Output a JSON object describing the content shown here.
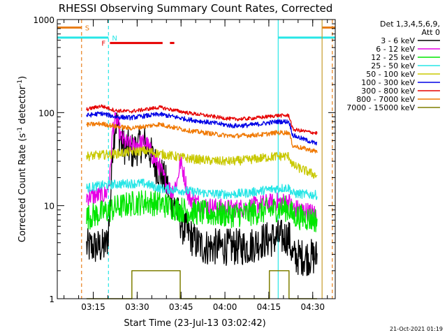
{
  "chart_data": {
    "type": "line",
    "title": "RHESSI Observing Summary Count Rates, Corrected",
    "xlabel": "Start Time (23-Jul-13 03:02:42)",
    "ylabel": "Corrected Count Rate (s",
    "ylabel_sup1": "-1",
    "ylabel_mid": " detector",
    "ylabel_sup2": "-1",
    "ylabel_end": ")",
    "yscale": "log",
    "ylim": [
      1,
      1000
    ],
    "xlim_minutes": [
      0,
      95
    ],
    "yticks": [
      {
        "v": 1,
        "label": "1"
      },
      {
        "v": 10,
        "label": "10"
      },
      {
        "v": 100,
        "label": "100"
      },
      {
        "v": 1000,
        "label": "1000"
      }
    ],
    "xticks": [
      {
        "t": 12.3,
        "label": "03:15"
      },
      {
        "t": 27.3,
        "label": "03:30"
      },
      {
        "t": 42.3,
        "label": "03:45"
      },
      {
        "t": 57.3,
        "label": "04:00"
      },
      {
        "t": 72.3,
        "label": "04:15"
      },
      {
        "t": 87.3,
        "label": "04:30"
      }
    ],
    "legend": {
      "placement": "right",
      "header1": "Det 1,3,4,5,6,9,",
      "header2": "Att 0"
    },
    "flags": {
      "S": {
        "label": "S",
        "color": "#e87f1a",
        "segments": [
          [
            0,
            8.3
          ],
          [
            90.5,
            95
          ]
        ],
        "value": 820
      },
      "N": {
        "label": "N",
        "color": "#27e6e6",
        "segments": [
          [
            0,
            17.5
          ],
          [
            75.5,
            95
          ]
        ],
        "value": 640
      },
      "F": {
        "label": "F",
        "color": "#e60000",
        "segments": [
          [
            18.0,
            36.0
          ],
          [
            38.5,
            40.0
          ]
        ],
        "value": 560
      }
    },
    "vlines": [
      {
        "t": 8.3,
        "color": "#e87f1a",
        "dash": true
      },
      {
        "t": 17.5,
        "color": "#27e6e6",
        "dash": true
      },
      {
        "t": 75.5,
        "color": "#27e6e6",
        "dash": false
      },
      {
        "t": 90.5,
        "color": "#c79b2b",
        "dash": false
      },
      {
        "t": 94.0,
        "color": "#e87f1a",
        "dash": true
      }
    ],
    "data_window": [
      10.0,
      88.8
    ],
    "series": [
      {
        "name": "3 - 6 keV",
        "color": "#000000",
        "noise": 0.2,
        "points": [
          [
            10,
            3.6
          ],
          [
            16,
            3.6
          ],
          [
            17,
            4.0
          ],
          [
            18,
            8
          ],
          [
            19,
            50
          ],
          [
            20,
            80
          ],
          [
            21,
            65
          ],
          [
            22,
            45
          ],
          [
            24,
            42
          ],
          [
            26,
            38
          ],
          [
            28,
            45
          ],
          [
            30,
            46
          ],
          [
            31,
            42
          ],
          [
            33,
            30
          ],
          [
            35,
            23
          ],
          [
            37,
            18
          ],
          [
            39,
            12
          ],
          [
            41,
            8.5
          ],
          [
            43,
            5.8
          ],
          [
            45,
            5.0
          ],
          [
            47,
            4.1
          ],
          [
            50,
            3.6
          ],
          [
            55,
            3.6
          ],
          [
            60,
            3.6
          ],
          [
            65,
            3.6
          ],
          [
            70,
            4.2
          ],
          [
            75,
            4.5
          ],
          [
            78,
            4.6
          ],
          [
            79.2,
            4.6
          ],
          [
            80.5,
            2.8
          ],
          [
            88.8,
            2.8
          ]
        ]
      },
      {
        "name": "6 - 12 keV",
        "color": "#e600e6",
        "noise": 0.1,
        "points": [
          [
            10,
            12.5
          ],
          [
            16,
            13
          ],
          [
            17,
            14
          ],
          [
            18,
            20
          ],
          [
            19,
            70
          ],
          [
            20,
            85
          ],
          [
            21,
            70
          ],
          [
            22,
            52
          ],
          [
            24,
            46
          ],
          [
            26,
            44
          ],
          [
            28,
            47
          ],
          [
            30,
            47
          ],
          [
            31,
            44
          ],
          [
            33,
            32
          ],
          [
            35,
            26
          ],
          [
            37,
            18
          ],
          [
            39,
            14
          ],
          [
            41,
            18
          ],
          [
            42,
            30
          ],
          [
            43,
            24
          ],
          [
            45,
            12
          ],
          [
            50,
            10
          ],
          [
            55,
            9.5
          ],
          [
            60,
            9.3
          ],
          [
            65,
            9.6
          ],
          [
            70,
            10.5
          ],
          [
            75,
            11
          ],
          [
            78,
            11
          ],
          [
            79.2,
            11
          ],
          [
            80.5,
            9.5
          ],
          [
            88.8,
            8.2
          ]
        ]
      },
      {
        "name": "12 - 25 keV",
        "color": "#00e600",
        "noise": 0.14,
        "points": [
          [
            10,
            7.5
          ],
          [
            16,
            8.5
          ],
          [
            20,
            9.5
          ],
          [
            25,
            10.5
          ],
          [
            30,
            11
          ],
          [
            35,
            10.5
          ],
          [
            40,
            9.5
          ],
          [
            45,
            8.7
          ],
          [
            50,
            8.3
          ],
          [
            55,
            8.0
          ],
          [
            60,
            8.0
          ],
          [
            65,
            8.2
          ],
          [
            70,
            8.7
          ],
          [
            75,
            9.2
          ],
          [
            78,
            9.3
          ],
          [
            79.2,
            9.2
          ],
          [
            80.5,
            7.8
          ],
          [
            88.8,
            7.0
          ]
        ]
      },
      {
        "name": "25 - 50 keV",
        "color": "#27e6e6",
        "noise": 0.05,
        "points": [
          [
            10,
            15.5
          ],
          [
            15,
            16.5
          ],
          [
            20,
            17
          ],
          [
            25,
            17.3
          ],
          [
            30,
            17.3
          ],
          [
            35,
            15.3
          ],
          [
            40,
            14.8
          ],
          [
            45,
            14.3
          ],
          [
            50,
            13.7
          ],
          [
            55,
            13.3
          ],
          [
            60,
            13.3
          ],
          [
            65,
            13.7
          ],
          [
            70,
            14.5
          ],
          [
            75,
            15.3
          ],
          [
            78,
            15.5
          ],
          [
            79.2,
            15.5
          ],
          [
            80.5,
            13.5
          ],
          [
            88.8,
            13.0
          ]
        ]
      },
      {
        "name": "50 - 100 keV",
        "color": "#c8c800",
        "noise": 0.05,
        "points": [
          [
            10,
            34
          ],
          [
            15,
            35
          ],
          [
            20,
            36
          ],
          [
            25,
            38
          ],
          [
            30,
            39
          ],
          [
            35,
            36
          ],
          [
            40,
            34
          ],
          [
            45,
            32
          ],
          [
            50,
            31
          ],
          [
            55,
            30
          ],
          [
            60,
            30
          ],
          [
            65,
            31
          ],
          [
            70,
            32.5
          ],
          [
            75,
            34
          ],
          [
            78,
            34
          ],
          [
            79.2,
            34
          ],
          [
            80.5,
            27
          ],
          [
            88.8,
            21
          ]
        ]
      },
      {
        "name": "100 - 300 keV",
        "color": "#0000e6",
        "noise": 0.025,
        "points": [
          [
            10,
            93
          ],
          [
            15,
            98
          ],
          [
            20,
            90
          ],
          [
            25,
            88
          ],
          [
            30,
            92
          ],
          [
            35,
            96
          ],
          [
            40,
            90
          ],
          [
            45,
            84
          ],
          [
            50,
            80
          ],
          [
            55,
            76
          ],
          [
            60,
            72
          ],
          [
            65,
            73
          ],
          [
            70,
            76
          ],
          [
            75,
            80
          ],
          [
            78,
            80
          ],
          [
            79.2,
            80
          ],
          [
            80.5,
            57
          ],
          [
            88.8,
            46
          ]
        ]
      },
      {
        "name": "300 - 800 keV",
        "color": "#e60000",
        "noise": 0.02,
        "points": [
          [
            10,
            108
          ],
          [
            15,
            118
          ],
          [
            20,
            105
          ],
          [
            25,
            103
          ],
          [
            30,
            108
          ],
          [
            35,
            114
          ],
          [
            40,
            106
          ],
          [
            45,
            99
          ],
          [
            50,
            94
          ],
          [
            55,
            89
          ],
          [
            60,
            85
          ],
          [
            65,
            86
          ],
          [
            70,
            89
          ],
          [
            75,
            93
          ],
          [
            78,
            93
          ],
          [
            79.2,
            93
          ],
          [
            80.5,
            66
          ],
          [
            88.8,
            60
          ]
        ]
      },
      {
        "name": "800 - 7000 keV",
        "color": "#f07800",
        "noise": 0.025,
        "points": [
          [
            10,
            74
          ],
          [
            15,
            76
          ],
          [
            20,
            71
          ],
          [
            25,
            68
          ],
          [
            30,
            71
          ],
          [
            35,
            75
          ],
          [
            40,
            69
          ],
          [
            45,
            64
          ],
          [
            50,
            61
          ],
          [
            55,
            58
          ],
          [
            60,
            56
          ],
          [
            65,
            57
          ],
          [
            70,
            58
          ],
          [
            75,
            61
          ],
          [
            78,
            61
          ],
          [
            79.2,
            61
          ],
          [
            80.5,
            44
          ],
          [
            88.8,
            38
          ]
        ]
      },
      {
        "name": "7000 - 15000 keV",
        "color": "#7f7f00",
        "noise": 0.0,
        "step": true,
        "points": [
          [
            10,
            1
          ],
          [
            25.5,
            1
          ],
          [
            25.5,
            2
          ],
          [
            42,
            2
          ],
          [
            42,
            1
          ],
          [
            72.5,
            1
          ],
          [
            72.5,
            2
          ],
          [
            79.2,
            2
          ],
          [
            79.2,
            1
          ],
          [
            88.8,
            1
          ]
        ]
      }
    ],
    "grid": false
  },
  "footer": {
    "timestamp": "21-Oct-2021 01:19"
  }
}
